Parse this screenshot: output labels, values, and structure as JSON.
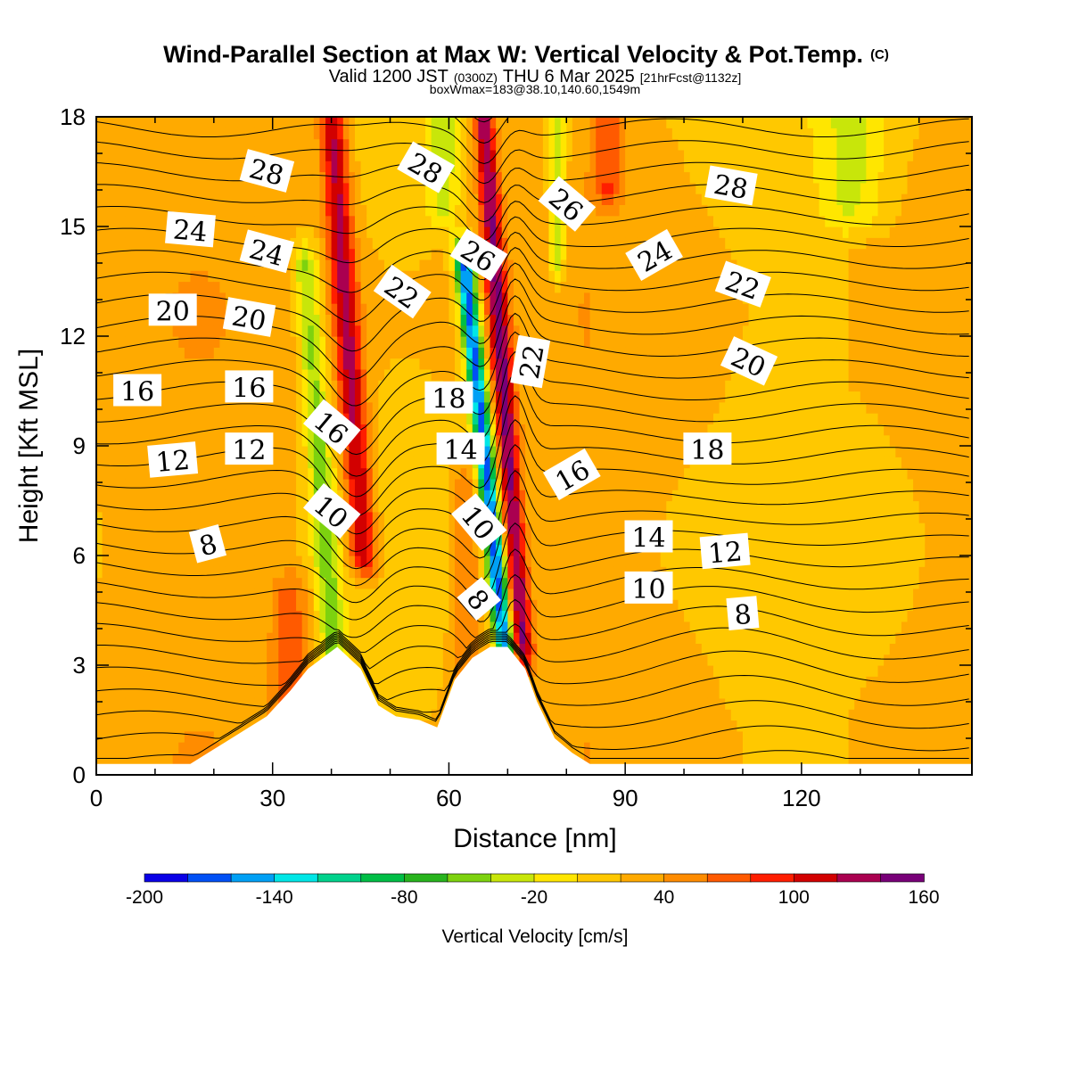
{
  "chart_data": {
    "type": "heatmap",
    "title": "Wind-Parallel Section at Max W: Vertical Velocity & Pot.Temp.",
    "title_mark": "(C)",
    "subtitle_a": "Valid 1200 JST",
    "subtitle_b": "(0300Z)",
    "subtitle_c": "THU 6 Mar 2025",
    "subtitle_d": "[21hrFcst@1132z]",
    "subtitle2": "boxWmax=183@38.10,140.60,1549m",
    "xlabel": "Distance [nm]",
    "ylabel": "Height [Kft MSL]",
    "xlim": [
      0,
      149
    ],
    "ylim": [
      0,
      18
    ],
    "x_ticks": [
      "0",
      "30",
      "60",
      "90",
      "120"
    ],
    "x_tick_values": [
      0,
      30,
      60,
      90,
      120
    ],
    "y_ticks": [
      "0",
      "3",
      "6",
      "9",
      "12",
      "15",
      "18"
    ],
    "y_tick_values": [
      0,
      3,
      6,
      9,
      12,
      15,
      18
    ],
    "colorbar": {
      "label": "Vertical Velocity [cm/s]",
      "range": [
        -200,
        160
      ],
      "step": 20,
      "tick_labels": [
        "-200",
        "-140",
        "-80",
        "-20",
        "40",
        "100",
        "160"
      ],
      "tick_values": [
        -200,
        -140,
        -80,
        -20,
        40,
        100,
        160
      ],
      "colors": [
        "#0a00e6",
        "#0050f5",
        "#00a0f5",
        "#00e6e6",
        "#00d28c",
        "#00be46",
        "#28b41e",
        "#7dd20f",
        "#c8e60a",
        "#ffe600",
        "#ffc800",
        "#ffaa00",
        "#ff8c00",
        "#ff5a00",
        "#ff1e00",
        "#d20000",
        "#aa0050",
        "#780078"
      ]
    },
    "updrafts": [
      {
        "x": 45.5,
        "z0": 6,
        "z1": 18,
        "slope": 0.45,
        "w": 105,
        "width": 2.3
      },
      {
        "x": 72.5,
        "z0": 3.5,
        "z1": 18,
        "slope": 0.45,
        "w": 120,
        "width": 1.8
      },
      {
        "x": 87,
        "z0": 16,
        "z1": 18,
        "slope": 0,
        "w": 55,
        "width": 2.5
      },
      {
        "x": 33,
        "z0": 1.5,
        "z1": 5,
        "slope": 0,
        "w": 50,
        "width": 3
      },
      {
        "x": 63,
        "z0": 2.5,
        "z1": 8,
        "slope": 0,
        "w": 40,
        "width": 2.5
      }
    ],
    "downdrafts": [
      {
        "x": 40.5,
        "z0": 3,
        "z1": 14,
        "slope": 0.45,
        "w": -70,
        "width": 2.2
      },
      {
        "x": 69.5,
        "z0": 3.5,
        "z1": 14,
        "slope": 0.65,
        "w": -190,
        "width": 1.6
      },
      {
        "x": 78.5,
        "z0": 14,
        "z1": 18,
        "slope": 0,
        "w": -60,
        "width": 1.5
      },
      {
        "x": 59,
        "z0": 15.5,
        "z1": 18,
        "slope": 0,
        "w": -50,
        "width": 2.5
      },
      {
        "x": 129,
        "z0": 15.5,
        "z1": 18,
        "slope": 0,
        "w": -40,
        "width": 5
      }
    ],
    "terrain": {
      "x": [
        0,
        16,
        19,
        22,
        25,
        29,
        33,
        36,
        41,
        45,
        48,
        51,
        55,
        58,
        61,
        64,
        67,
        70,
        73,
        75,
        78,
        81,
        84,
        149
      ],
      "z": [
        0.3,
        0.3,
        0.6,
        0.9,
        1.2,
        1.6,
        2.3,
        2.9,
        3.5,
        2.9,
        1.9,
        1.6,
        1.5,
        1.3,
        2.6,
        3.2,
        3.5,
        3.5,
        2.9,
        2.0,
        1.0,
        0.6,
        0.3,
        0.3
      ]
    },
    "theta_labels": [
      {
        "text": "28",
        "x": 29,
        "z": 16.5,
        "rot": 15
      },
      {
        "text": "28",
        "x": 56,
        "z": 16.6,
        "rot": 30
      },
      {
        "text": "28",
        "x": 108,
        "z": 16.1,
        "rot": 10
      },
      {
        "text": "24",
        "x": 16,
        "z": 14.9,
        "rot": 5
      },
      {
        "text": "24",
        "x": 29,
        "z": 14.3,
        "rot": 15
      },
      {
        "text": "26",
        "x": 65,
        "z": 14.2,
        "rot": 32
      },
      {
        "text": "26",
        "x": 80,
        "z": 15.6,
        "rot": 40
      },
      {
        "text": "24",
        "x": 95,
        "z": 14.2,
        "rot": -30
      },
      {
        "text": "22",
        "x": 52,
        "z": 13.2,
        "rot": 35
      },
      {
        "text": "22",
        "x": 110,
        "z": 13.4,
        "rot": 20
      },
      {
        "text": "20",
        "x": 13,
        "z": 12.7,
        "rot": 0
      },
      {
        "text": "20",
        "x": 26,
        "z": 12.5,
        "rot": 10
      },
      {
        "text": "22",
        "x": 74,
        "z": 11.3,
        "rot": -80
      },
      {
        "text": "20",
        "x": 111,
        "z": 11.3,
        "rot": 25
      },
      {
        "text": "16",
        "x": 7,
        "z": 10.5,
        "rot": 0
      },
      {
        "text": "16",
        "x": 26,
        "z": 10.6,
        "rot": 0
      },
      {
        "text": "18",
        "x": 60,
        "z": 10.3,
        "rot": 0
      },
      {
        "text": "16",
        "x": 40,
        "z": 9.5,
        "rot": 40
      },
      {
        "text": "12",
        "x": 13,
        "z": 8.6,
        "rot": -5
      },
      {
        "text": "12",
        "x": 26,
        "z": 8.9,
        "rot": 0
      },
      {
        "text": "14",
        "x": 62,
        "z": 8.9,
        "rot": 0
      },
      {
        "text": "18",
        "x": 104,
        "z": 8.9,
        "rot": 0
      },
      {
        "text": "16",
        "x": 81,
        "z": 8.2,
        "rot": -30
      },
      {
        "text": "10",
        "x": 40,
        "z": 7.2,
        "rot": 40
      },
      {
        "text": "10",
        "x": 65,
        "z": 6.9,
        "rot": 50
      },
      {
        "text": "14",
        "x": 94,
        "z": 6.5,
        "rot": 0
      },
      {
        "text": "8",
        "x": 19,
        "z": 6.3,
        "rot": -15
      },
      {
        "text": "12",
        "x": 107,
        "z": 6.1,
        "rot": -5
      },
      {
        "text": "10",
        "x": 94,
        "z": 5.1,
        "rot": 0
      },
      {
        "text": "8",
        "x": 65,
        "z": 4.8,
        "rot": 50
      },
      {
        "text": "8",
        "x": 110,
        "z": 4.4,
        "rot": -5
      }
    ]
  }
}
